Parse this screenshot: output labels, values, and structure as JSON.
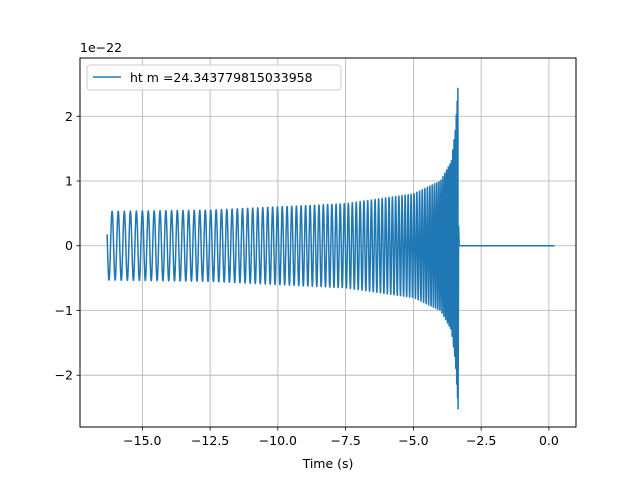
{
  "chart_data": {
    "type": "line",
    "xlabel": "Time (s)",
    "ylabel": "",
    "y_scale_label": "1e−22",
    "xlim": [
      -17.3,
      1.0
    ],
    "ylim": [
      -2.8,
      2.9
    ],
    "grid": true,
    "legend_position": "top-left",
    "xticks": [
      {
        "value": -15.0,
        "label": "−15.0"
      },
      {
        "value": -12.5,
        "label": "−12.5"
      },
      {
        "value": -10.0,
        "label": "−10.0"
      },
      {
        "value": -7.5,
        "label": "−7.5"
      },
      {
        "value": -5.0,
        "label": "−5.0"
      },
      {
        "value": -2.5,
        "label": "−2.5"
      },
      {
        "value": 0.0,
        "label": "0.0"
      }
    ],
    "yticks": [
      {
        "value": -2,
        "label": "−2"
      },
      {
        "value": -1,
        "label": "−1"
      },
      {
        "value": 0,
        "label": "0"
      },
      {
        "value": 1,
        "label": "1"
      },
      {
        "value": 2,
        "label": "2"
      }
    ],
    "series": [
      {
        "name": "ht m =24.343779815033958",
        "color": "#1f77b4",
        "waveform": "chirp",
        "t_start": -16.3,
        "t_merger": -3.35,
        "t_end": 0.2,
        "amplitude_at_start": 0.53,
        "amplitude_envelope": [
          [
            -16.3,
            0.53
          ],
          [
            -12.5,
            0.55
          ],
          [
            -10.0,
            0.6
          ],
          [
            -7.5,
            0.65
          ],
          [
            -5.0,
            0.8
          ],
          [
            -4.0,
            1.0
          ],
          [
            -3.6,
            1.3
          ],
          [
            -3.45,
            1.8
          ],
          [
            -3.35,
            2.5
          ]
        ],
        "post_merger_value": 0.0
      }
    ]
  }
}
